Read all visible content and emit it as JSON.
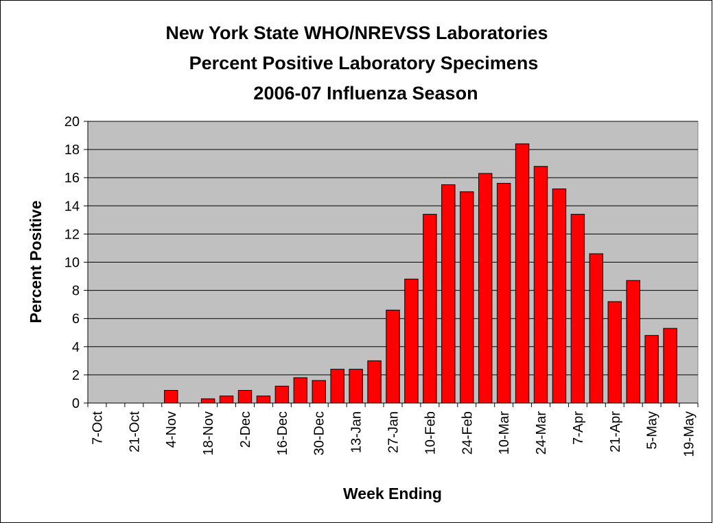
{
  "chart_data": {
    "type": "bar",
    "title": [
      "New York State WHO/NREVSS Laboratories",
      "Percent Positive Laboratory Specimens",
      "2006-07 Influenza Season"
    ],
    "x_label": "Week Ending",
    "y_label": "Percent Positive",
    "categories": [
      "7-Oct",
      null,
      "21-Oct",
      null,
      "4-Nov",
      null,
      "18-Nov",
      null,
      "2-Dec",
      null,
      "16-Dec",
      null,
      "30-Dec",
      null,
      "13-Jan",
      null,
      "27-Jan",
      null,
      "10-Feb",
      null,
      "24-Feb",
      null,
      "10-Mar",
      null,
      "24-Mar",
      null,
      "7-Apr",
      null,
      "21-Apr",
      null,
      "5-May",
      null,
      "19-May"
    ],
    "values": [
      0,
      0,
      0,
      0,
      0.9,
      0,
      0.3,
      0.5,
      0.9,
      0.5,
      1.2,
      1.8,
      1.6,
      2.4,
      2.4,
      3.0,
      6.6,
      8.8,
      13.4,
      15.5,
      15.0,
      16.3,
      15.6,
      18.4,
      16.8,
      15.2,
      13.4,
      10.6,
      7.2,
      8.7,
      4.8,
      5.3,
      0
    ],
    "color": "#ff0000",
    "plot_background": "#c0c0c0",
    "ylim": [
      0,
      20
    ],
    "yticks": [
      0,
      2,
      4,
      6,
      8,
      10,
      12,
      14,
      16,
      18,
      20
    ],
    "grid": true
  }
}
